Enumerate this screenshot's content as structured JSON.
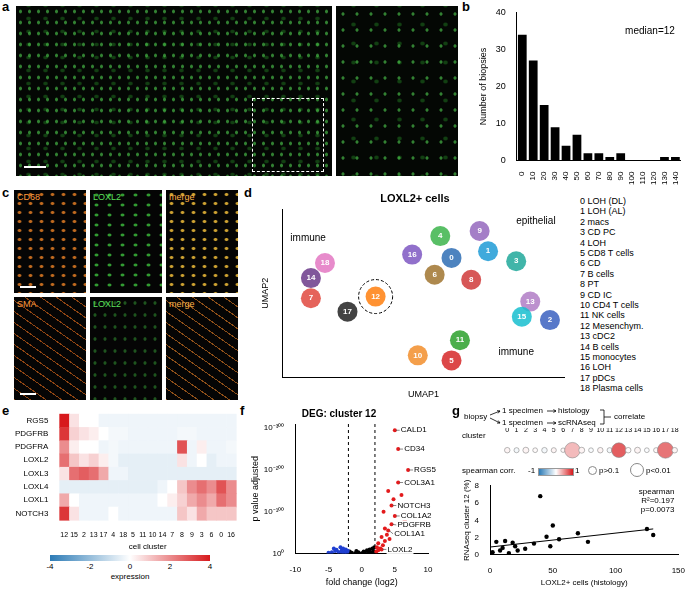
{
  "figure": {
    "a": {
      "letter": "a"
    },
    "c": {
      "letter": "c",
      "labels": [
        [
          "CD68",
          "LOXL2",
          "merge"
        ],
        [
          "SMA",
          "LOXL2",
          "merge"
        ]
      ]
    }
  },
  "chart_data": [
    {
      "panel": "b",
      "type": "bar",
      "categories": [
        "0",
        "10",
        "20",
        "30",
        "40",
        "50",
        "60",
        "70",
        "80",
        "90",
        "100",
        "110",
        "120",
        "130",
        "140"
      ],
      "values": [
        34,
        27,
        15,
        9,
        4,
        7,
        2,
        2,
        1,
        2,
        0,
        0,
        0,
        1,
        1
      ],
      "color": "#000000",
      "ylim": [
        0,
        40
      ],
      "yticks": [
        0,
        10,
        20,
        30,
        40
      ],
      "ylabel": "Number of biopsies",
      "annotations": [
        "median=12"
      ],
      "grid": false
    },
    {
      "panel": "d",
      "type": "scatter",
      "title": "LOXL2+ cells",
      "xlabel": "UMAP1",
      "ylabel": "UMAP2",
      "xlim": [
        0,
        10
      ],
      "ylim": [
        0,
        10
      ],
      "tick_labels": false,
      "clusters": [
        {
          "id": "0",
          "name": "LOH (DL)",
          "color": "#2e6db4",
          "x": 6.0,
          "y": 7.1
        },
        {
          "id": "1",
          "name": "LOH (AL)",
          "color": "#1f9bd6",
          "x": 7.3,
          "y": 7.5
        },
        {
          "id": "2",
          "name": "macs",
          "color": "#3a60c0",
          "x": 9.5,
          "y": 3.4
        },
        {
          "id": "3",
          "name": "CD PC",
          "color": "#20a89a",
          "x": 8.3,
          "y": 6.9
        },
        {
          "id": "4",
          "name": "LOH",
          "color": "#3cb44b",
          "x": 5.6,
          "y": 8.4
        },
        {
          "id": "5",
          "name": "CD8 T cells",
          "color": "#d62728",
          "x": 6.0,
          "y": 1.0
        },
        {
          "id": "6",
          "name": "CD",
          "color": "#a0742f",
          "x": 5.4,
          "y": 6.1
        },
        {
          "id": "7",
          "name": "B cells",
          "color": "#e0483e",
          "x": 1.0,
          "y": 4.7
        },
        {
          "id": "8",
          "name": "PT",
          "color": "#d03a3a",
          "x": 6.7,
          "y": 5.8
        },
        {
          "id": "9",
          "name": "CD IC",
          "color": "#9467bd",
          "x": 7.0,
          "y": 8.7
        },
        {
          "id": "10",
          "name": "CD4 T cells",
          "color": "#f28e2b",
          "x": 4.8,
          "y": 1.3
        },
        {
          "id": "11",
          "name": "NK cells",
          "color": "#2ca02c",
          "x": 6.3,
          "y": 2.2
        },
        {
          "id": "12",
          "name": "Mesenchym.",
          "color": "#ff7f0e",
          "x": 3.3,
          "y": 4.8,
          "circled": true
        },
        {
          "id": "13",
          "name": "cDC2",
          "color": "#b07cc6",
          "x": 8.8,
          "y": 4.5
        },
        {
          "id": "14",
          "name": "B cells",
          "color": "#6b3a8a",
          "x": 1.0,
          "y": 5.9
        },
        {
          "id": "15",
          "name": "monocytes",
          "color": "#17becf",
          "x": 8.5,
          "y": 3.6
        },
        {
          "id": "16",
          "name": "LOH",
          "color": "#7e57c2",
          "x": 4.6,
          "y": 7.3
        },
        {
          "id": "17",
          "name": "pDCs",
          "color": "#222222",
          "x": 2.3,
          "y": 3.9
        },
        {
          "id": "18",
          "name": "Plasma cells",
          "color": "#e377c2",
          "x": 1.5,
          "y": 6.8
        }
      ],
      "annotations": [
        {
          "text": "immune",
          "x": 0.9,
          "y": 8.3
        },
        {
          "text": "epithelial",
          "x": 9.0,
          "y": 9.3
        },
        {
          "text": "immune",
          "x": 8.3,
          "y": 1.5
        }
      ]
    },
    {
      "panel": "e",
      "type": "heatmap",
      "rows": [
        "RGS5",
        "PDGFRB",
        "PDGFRA",
        "LOXL2",
        "LOXL3",
        "LOXL4",
        "LOXL1",
        "NOTCH3"
      ],
      "categories": [
        "12",
        "15",
        "2",
        "13",
        "17",
        "4",
        "18",
        "5",
        "11",
        "10",
        "14",
        "7",
        "8",
        "9",
        "3",
        "6",
        "0",
        "16"
      ],
      "xlabel": "cell cluster",
      "cells": [
        [
          4,
          0.5,
          0,
          0,
          -0.3,
          -0.3,
          -0.3,
          -0.3,
          -0.3,
          -0.3,
          -0.3,
          -0.3,
          -0.3,
          -0.3,
          -0.3,
          -0.3,
          -0.3,
          -0.3
        ],
        [
          3.5,
          0.8,
          0.5,
          0.3,
          0,
          -0.2,
          -0.2,
          -0.3,
          -0.3,
          -0.3,
          -0.3,
          -0.3,
          -0.2,
          -0.2,
          -0.3,
          -0.3,
          -0.3,
          -0.3
        ],
        [
          2,
          0.3,
          0,
          0,
          -0.3,
          -0.2,
          -0.3,
          -0.3,
          -0.3,
          -0.3,
          -0.3,
          -0.3,
          3,
          -0.3,
          0.3,
          -0.3,
          -0.3,
          -0.2
        ],
        [
          2.5,
          1,
          0.5,
          0.8,
          0.3,
          -0.2,
          -0.5,
          -0.5,
          -0.5,
          -0.5,
          -0.5,
          -0.5,
          0.5,
          -0.3,
          0,
          -0.5,
          -0.3,
          -0.3
        ],
        [
          0.5,
          2.5,
          2.8,
          2.5,
          1.5,
          -0.3,
          -0.3,
          -0.5,
          -0.5,
          -0.5,
          -0.5,
          -0.5,
          -0.5,
          -0.5,
          -0.5,
          -0.5,
          -0.5,
          -0.5
        ],
        [
          -0.5,
          -0.5,
          -0.5,
          -0.5,
          -0.5,
          -0.5,
          -0.5,
          -0.5,
          -0.5,
          -0.5,
          -0.3,
          0,
          1,
          2,
          2.5,
          2,
          3,
          2
        ],
        [
          1.5,
          0,
          -0.3,
          -0.3,
          -0.3,
          -0.3,
          -0.3,
          -0.3,
          -0.3,
          -0.3,
          0,
          0.3,
          0.8,
          1.5,
          2,
          1.5,
          2.5,
          2
        ],
        [
          3.5,
          0.5,
          -0.3,
          -0.3,
          -0.3,
          0,
          -0.3,
          -0.3,
          -0.3,
          -0.3,
          -0.3,
          -0.3,
          1,
          0.5,
          1.5,
          1,
          1,
          1
        ]
      ],
      "colorbar": {
        "range": [
          -4,
          4
        ],
        "ticks": [
          -4,
          -2,
          0,
          2,
          4
        ],
        "label": "expression"
      }
    },
    {
      "panel": "f",
      "type": "scatter",
      "title": "DEG: cluster 12",
      "xlabel": "fold change (log2)",
      "ylabel": "p value adjusted",
      "xlim": [
        -10,
        10
      ],
      "xticks": [
        -10,
        -5,
        0,
        5,
        10
      ],
      "ylim": [
        0,
        310
      ],
      "yticks": [
        {
          "value": 0,
          "label": "10⁰"
        },
        {
          "value": 100,
          "label": "10⁻¹⁰⁰"
        },
        {
          "value": 200,
          "label": "10⁻²⁰⁰"
        },
        {
          "value": 300,
          "label": "10⁻³⁰⁰"
        }
      ],
      "grid": false,
      "thresholds": [
        -2,
        2
      ],
      "series": [
        {
          "color": "#e31a1c",
          "x": [
            2.2,
            2.5,
            2.8,
            3,
            3.2,
            3.5,
            3.8,
            4,
            4.2,
            4.5,
            4.5,
            5,
            5.5,
            7,
            5.5,
            5,
            2.5,
            3,
            3.5,
            2.3,
            4.8,
            6,
            6.5,
            4,
            3.3
          ],
          "y": [
            5,
            8,
            12,
            10,
            20,
            30,
            45,
            55,
            35,
            70,
            115,
            90,
            170,
            200,
            250,
            295,
            25,
            40,
            60,
            15,
            130,
            140,
            80,
            150,
            100
          ]
        },
        {
          "color": "#1f3fd1",
          "x": [
            -2.2,
            -2.5,
            -3,
            -3.5,
            -4,
            -4.5,
            -5,
            -2.8,
            -3.2,
            -2.4,
            -3.8,
            -2.6,
            -4.2,
            -3,
            -2.1
          ],
          "y": [
            3,
            5,
            8,
            4,
            6,
            3,
            2,
            12,
            15,
            10,
            9,
            2,
            12,
            3,
            7
          ]
        },
        {
          "color": "#000000",
          "x": [
            -1.5,
            -1,
            -0.5,
            0,
            0.5,
            1,
            1.5,
            1.8,
            -1.8,
            0.8,
            1.2,
            1.6,
            -0.8,
            0.3,
            1.9
          ],
          "y": [
            2,
            1,
            3,
            1,
            2,
            4,
            3,
            6,
            5,
            8,
            10,
            12,
            6,
            5,
            15
          ]
        }
      ],
      "labels": [
        {
          "text": "CALD1",
          "x": 5,
          "y": 295
        },
        {
          "text": "CD34",
          "x": 5.5,
          "y": 250
        },
        {
          "text": "RGS5",
          "x": 7,
          "y": 200
        },
        {
          "text": "COL3A1",
          "x": 5.5,
          "y": 170
        },
        {
          "text": "NOTCH3",
          "x": 4.5,
          "y": 115
        },
        {
          "text": "COL1A2",
          "x": 5,
          "y": 90
        },
        {
          "text": "PDGFRB",
          "x": 4.5,
          "y": 70
        },
        {
          "text": "COL1A1",
          "x": 4,
          "y": 55
        },
        {
          "text": "LOXL2",
          "x": 3,
          "y": 10
        }
      ]
    },
    {
      "panel": "g",
      "type": "scatter",
      "diagram": {
        "start": "biopsy",
        "branches": [
          [
            "1 specimen",
            "histology"
          ],
          [
            "1 specimen",
            "scRNAseq"
          ]
        ],
        "link": "correlate"
      },
      "dot_row": {
        "label": "cluster",
        "clusters": [
          "0",
          "1",
          "2",
          "3",
          "4",
          "5",
          "6",
          "7",
          "8",
          "9",
          "10",
          "11",
          "12",
          "13",
          "14",
          "15",
          "16",
          "17",
          "18"
        ],
        "spearman_corr": [
          0.05,
          -0.05,
          0.05,
          0.02,
          -0.05,
          0.05,
          0.03,
          0.3,
          0.05,
          -0.03,
          0.05,
          -0.05,
          0.7,
          0.02,
          0.05,
          -0.02,
          0.03,
          0.6,
          0.05
        ],
        "p": [
          0.5,
          0.6,
          0.4,
          0.7,
          0.5,
          0.6,
          0.8,
          0.005,
          0.4,
          0.7,
          0.5,
          0.6,
          0.0073,
          0.5,
          0.4,
          0.7,
          0.6,
          0.004,
          0.5
        ],
        "colorbar": {
          "label": "spearman corr.",
          "range": [
            -1,
            1
          ],
          "ticks": [
            -1,
            1
          ]
        },
        "p_legend": [
          {
            "label": "p>0.1",
            "p": 0.1
          },
          {
            "label": "p<0.01",
            "p": 0.01
          }
        ]
      },
      "xlabel": "LOXL2+ cells (histology)",
      "ylabel": "RNAseq cluster 12 (%)",
      "xlim": [
        0,
        150
      ],
      "xticks": [
        0,
        50,
        100,
        150
      ],
      "ylim": [
        0,
        8
      ],
      "yticks": [
        0,
        2,
        4,
        6,
        8
      ],
      "grid": false,
      "series": [
        {
          "type": "scatter",
          "color": "#000000",
          "x": [
            0,
            2,
            5,
            8,
            10,
            12,
            15,
            18,
            20,
            22,
            28,
            35,
            40,
            45,
            48,
            50,
            55,
            70,
            78,
            125,
            130
          ],
          "y": [
            0.1,
            0.3,
            1.5,
            0.5,
            0.8,
            1.6,
            0.2,
            1.4,
            1.0,
            0.5,
            0.7,
            1.3,
            6.8,
            2.1,
            1.0,
            3.4,
            1.8,
            2.5,
            1.5,
            3.0,
            2.3
          ]
        },
        {
          "type": "line",
          "color": "#000000",
          "x": [
            0,
            130
          ],
          "y": [
            0.9,
            3.0
          ]
        }
      ],
      "annotations": [
        "spearman",
        "R²=0.197",
        "p=0.0073"
      ]
    }
  ]
}
